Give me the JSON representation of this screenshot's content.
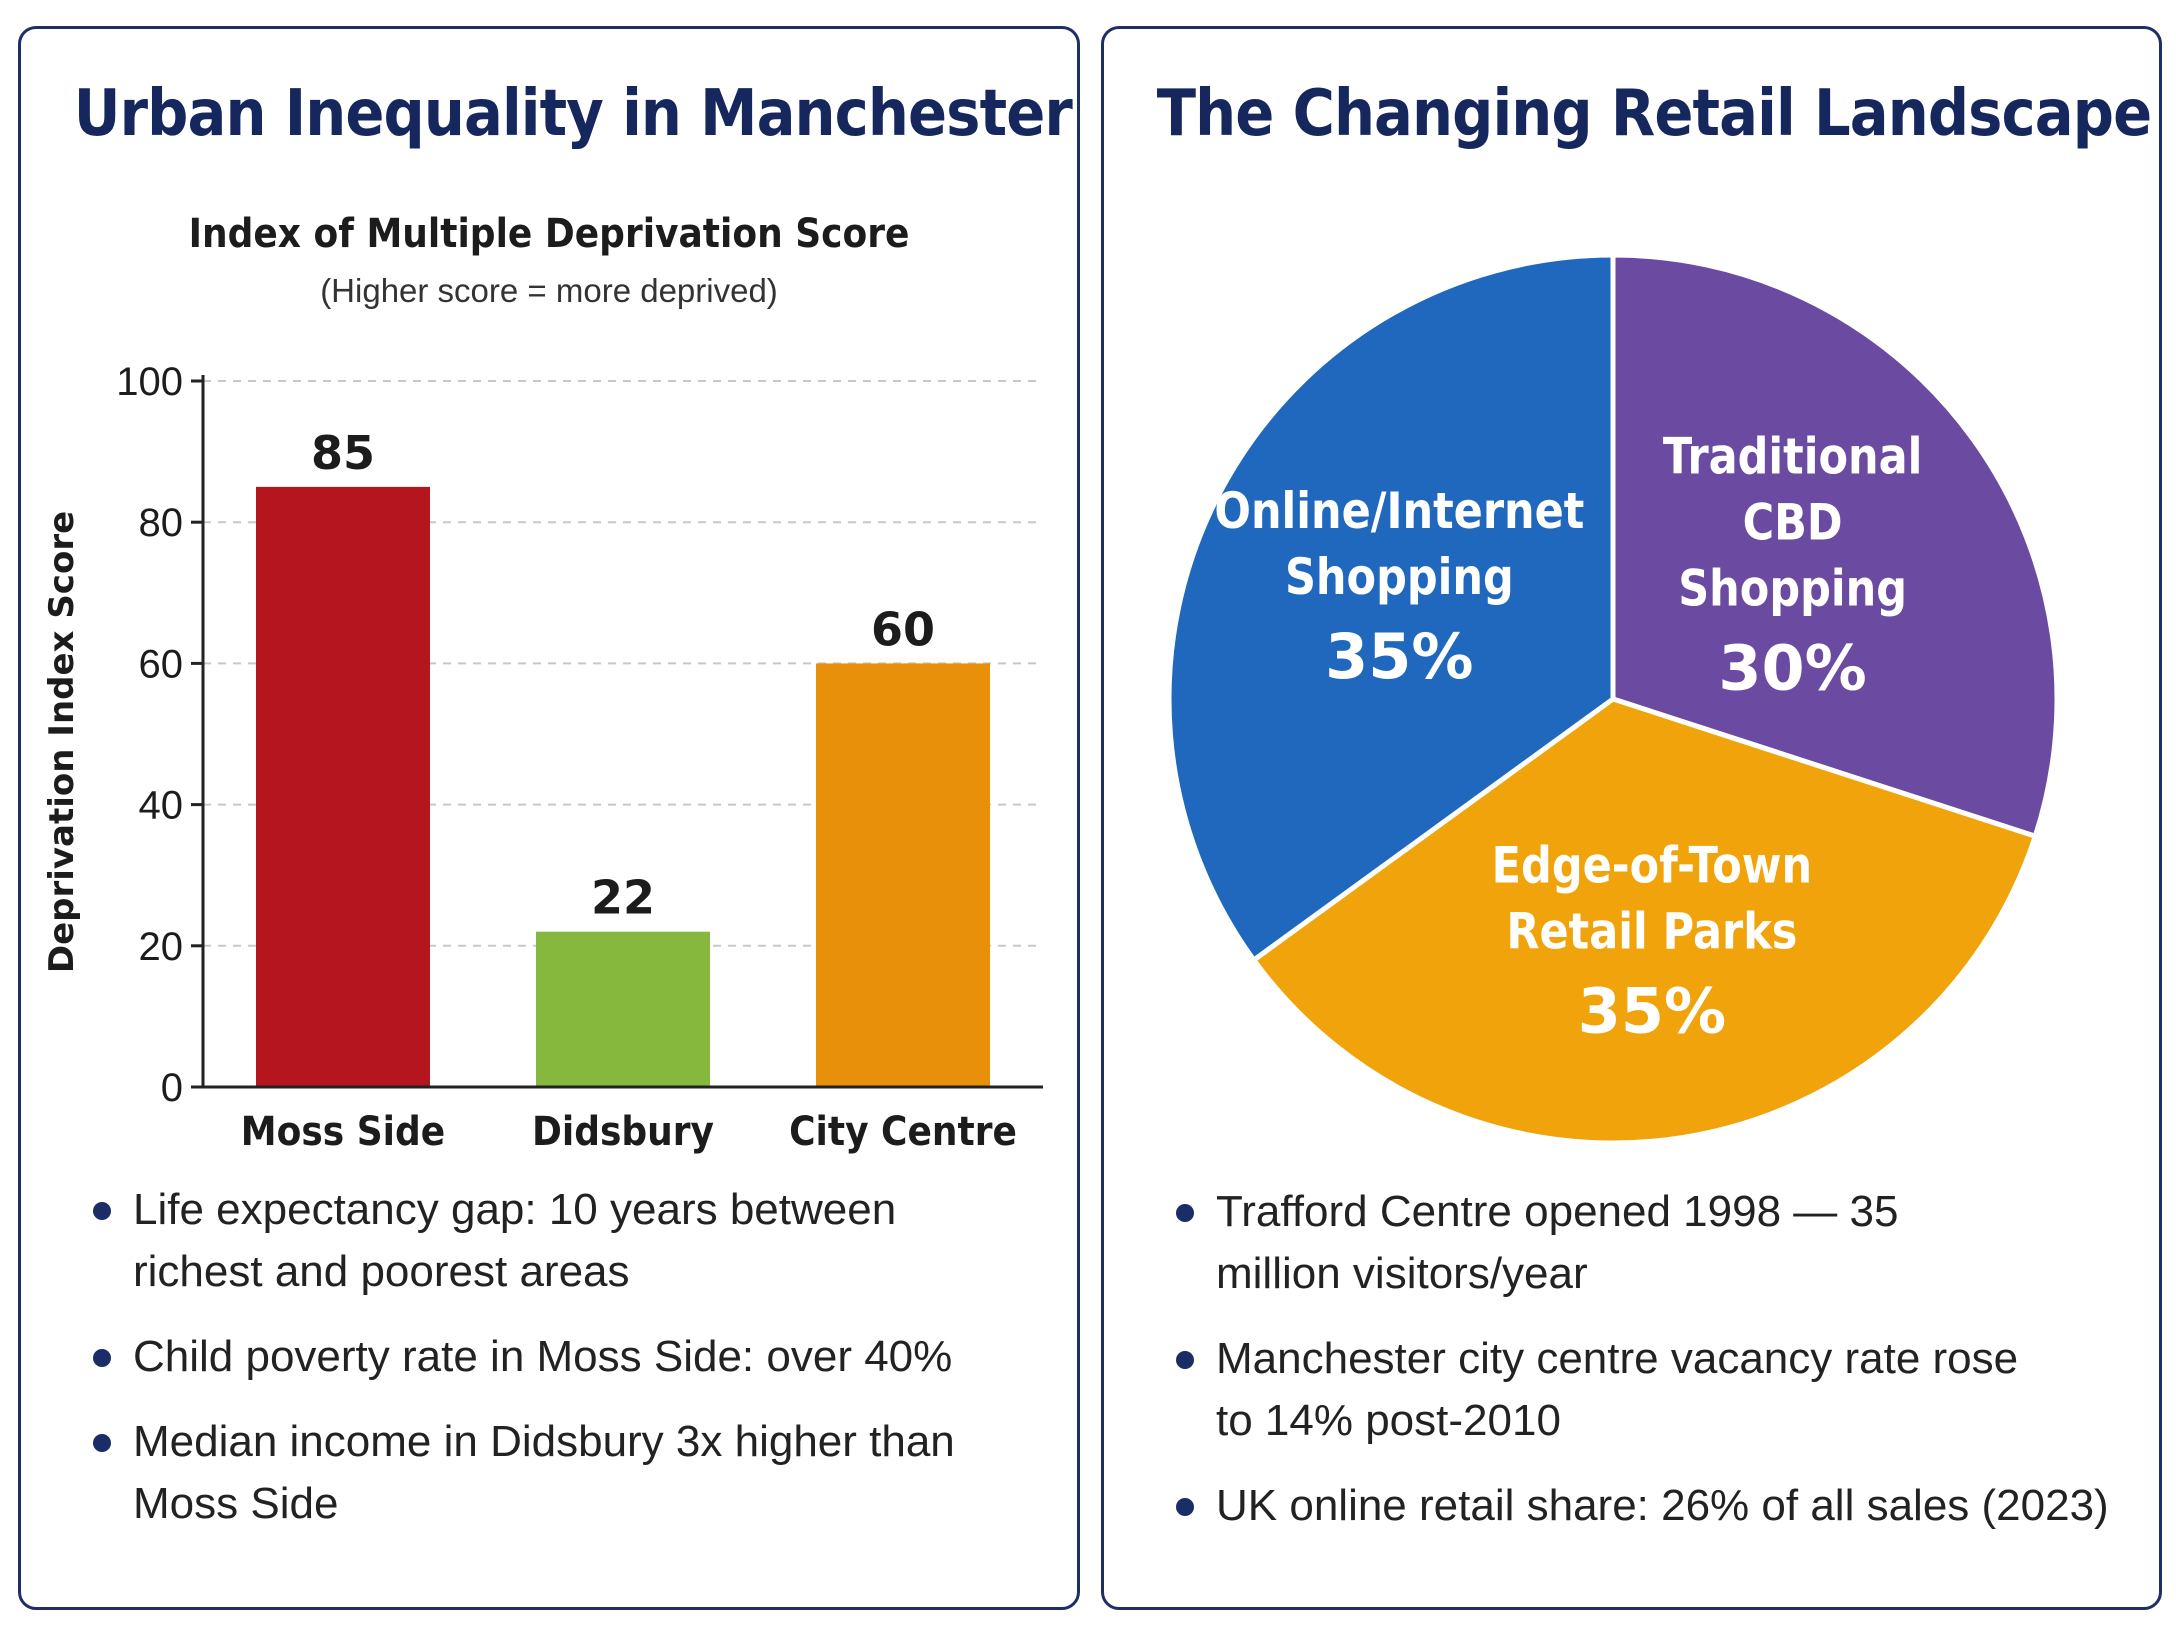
{
  "colors": {
    "border": "#1e2f66",
    "title": "#16275e",
    "moss_side": "#b5161e",
    "didsbury": "#86b83e",
    "city_centre": "#e8900a",
    "online": "#1f68bd",
    "traditional": "#6a4ba1",
    "edge_of_town": "#f0a30a",
    "bullet": "#1a2d66"
  },
  "left_panel": {
    "title": "Urban Inequality in Manchester",
    "bullets": [
      "Life expectancy gap: 10 years between richest and poorest areas",
      "Child poverty rate in Moss Side: over 40%",
      "Median income in Didsbury 3x higher than Moss Side"
    ]
  },
  "right_panel": {
    "title": "The Changing Retail Landscape",
    "bullets": [
      "Trafford Centre opened 1998 — 35 million visitors/year",
      "Manchester city centre vacancy rate rose to 14% post-2010",
      "UK online retail share: 26% of all sales (2023)"
    ]
  },
  "chart_data": [
    {
      "type": "bar",
      "title": "Index of Multiple Deprivation Score",
      "subtitle": "(Higher score = more deprived)",
      "categories": [
        "Moss Side",
        "Didsbury",
        "City Centre"
      ],
      "values": [
        85,
        22,
        60
      ],
      "data_labels": [
        "85",
        "22",
        "60"
      ],
      "colors": [
        "#b5161e",
        "#86b83e",
        "#e8900a"
      ],
      "xlabel": "",
      "ylabel": "Deprivation Index Score",
      "ylim": [
        0,
        100
      ],
      "yticks": [
        "0",
        "20",
        "40",
        "60",
        "80",
        "100"
      ],
      "grid": "horizontal dashed"
    },
    {
      "type": "pie",
      "slices": [
        {
          "label": "Online/Internet Shopping",
          "lines": [
            "Online/Internet",
            "Shopping"
          ],
          "value": 35,
          "value_label": "35%",
          "color": "#1f68bd"
        },
        {
          "label": "Traditional CBD Shopping",
          "lines": [
            "Traditional",
            "CBD",
            "Shopping"
          ],
          "value": 30,
          "value_label": "30%",
          "color": "#6a4ba1"
        },
        {
          "label": "Edge-of-Town Retail Parks",
          "lines": [
            "Edge-of-Town",
            "Retail Parks"
          ],
          "value": 35,
          "value_label": "35%",
          "color": "#f0a30a"
        }
      ]
    }
  ]
}
